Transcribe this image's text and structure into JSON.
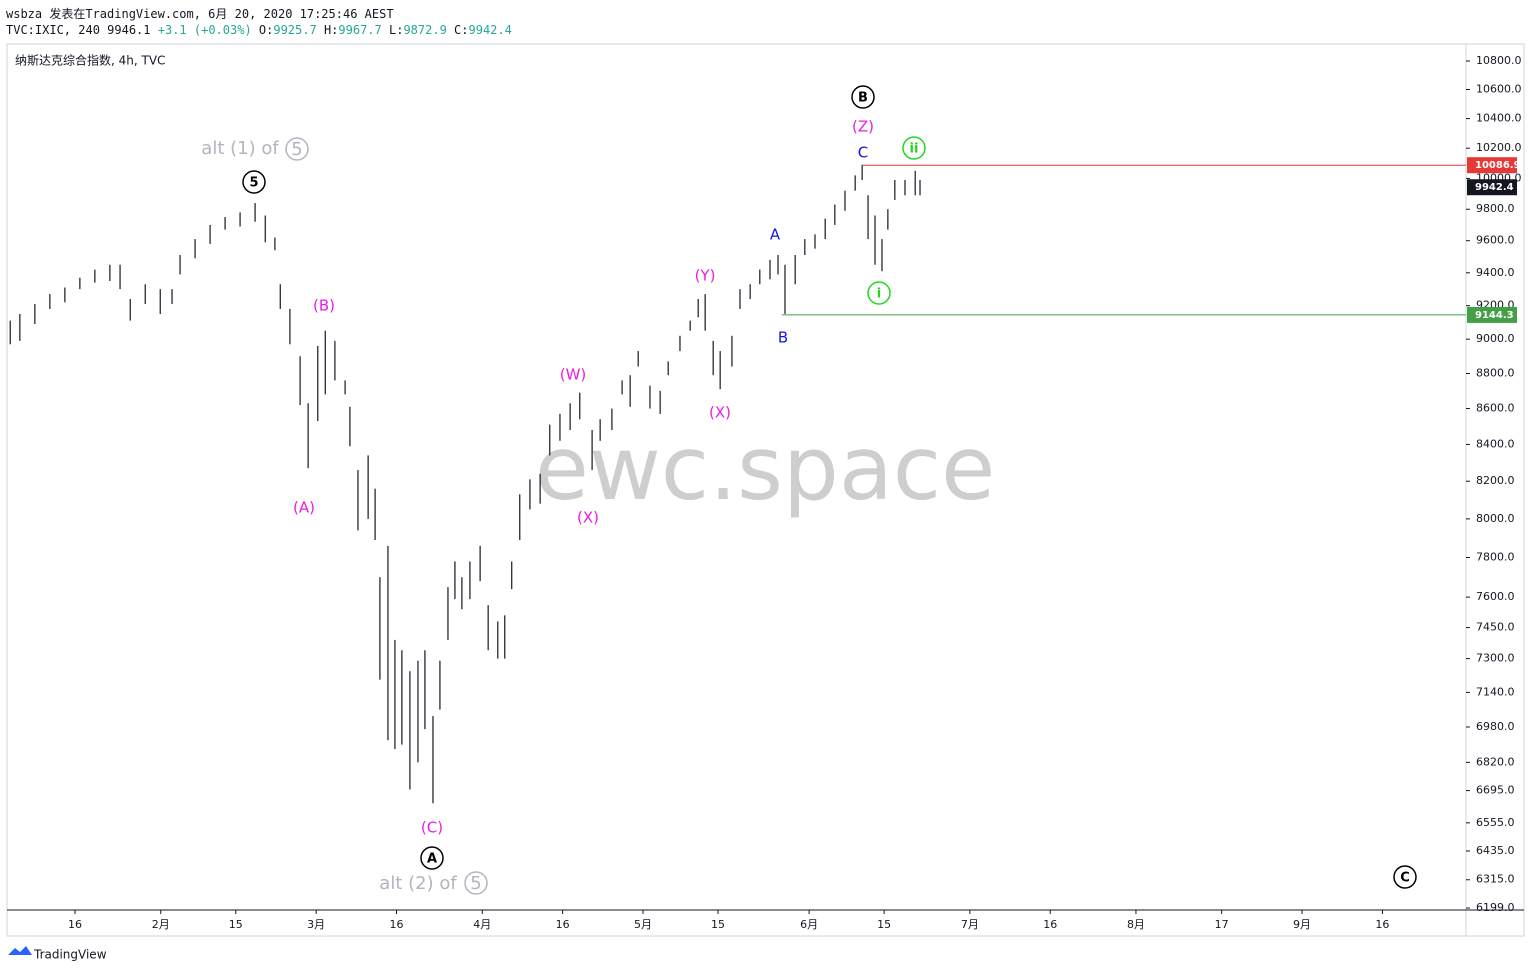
{
  "header": {
    "author_line": "wsbza 发表在TradingView.com, 6月 20, 2020 17:25:46 AEST",
    "symbol": "TVC:IXIC, 240",
    "last": 9946.1,
    "change": "+3.1 (+0.03%)",
    "ohlc_labels": [
      "O:",
      "H:",
      "L:",
      "C:"
    ],
    "ohlc_values": [
      9925.7,
      9967.7,
      9872.9,
      9942.4
    ]
  },
  "footer": {
    "brand": "TradingView"
  },
  "chart_data": {
    "type": "ohlc",
    "title": "纳斯达克综合指数, 4h, TVC",
    "watermark": "ewc.space",
    "color": "#131722",
    "log_scale": true,
    "x": [
      2.9,
      4.7,
      7.5,
      10.3,
      13.1,
      15.9,
      18.7,
      21.5,
      23.4,
      25.3,
      28.1,
      30.9,
      33.1,
      34.6,
      37.4,
      40.2,
      43.0,
      45.8,
      48.6,
      50.5,
      52.3,
      53.3,
      55.1,
      57.0,
      58.5,
      60.3,
      61.7,
      63.5,
      65.4,
      66.3,
      67.8,
      69.7,
      71.0,
      71.9,
      73.4,
      74.7,
      76.0,
      77.5,
      79.0,
      80.3,
      81.8,
      83.1,
      84.6,
      85.9,
      87.2,
      88.7,
      90.6,
      92.1,
      93.9,
      95.2,
      96.5,
      98.0,
      99.9,
      101.8,
      103.6,
      105.5,
      107.4,
      109.2,
      111.5,
      113.0,
      115.2,
      117.1,
      118.6,
      120.1,
      122.3,
      124.2,
      125.7,
      127.9,
      129.8,
      131.3,
      132.6,
      134.1,
      135.4,
      137.6,
      139.1,
      141.0,
      142.8,
      144.7,
      146.2,
      147.5,
      149.4,
      151.2,
      153.1,
      155.0,
      156.8,
      158.7,
      160.6,
      161.9,
      163.0,
      164.3,
      165.6,
      166.7,
      168.0,
      169.9,
      171.8,
      172.7
    ],
    "highs": [
      9110,
      9150,
      9210,
      9270,
      9310,
      9370,
      9420,
      9450,
      9450,
      9240,
      9330,
      9300,
      9300,
      9510,
      9610,
      9700,
      9750,
      9780,
      9840,
      9760,
      9620,
      9330,
      9180,
      8900,
      8630,
      8960,
      9050,
      8990,
      8760,
      8610,
      8260,
      8340,
      8160,
      7700,
      7860,
      7390,
      7340,
      7240,
      7290,
      7340,
      7030,
      7290,
      7650,
      7780,
      7700,
      7780,
      7860,
      7560,
      7480,
      7510,
      7780,
      8130,
      8210,
      8240,
      8510,
      8570,
      8630,
      8690,
      8480,
      8540,
      8600,
      8760,
      8790,
      8930,
      8730,
      8700,
      8870,
      9020,
      9110,
      9240,
      9270,
      8990,
      8930,
      9020,
      9300,
      9330,
      9420,
      9480,
      9510,
      9450,
      9510,
      9610,
      9640,
      9740,
      9830,
      9920,
      10020,
      10090,
      9890,
      9760,
      9610,
      9800,
      9990,
      9990,
      10050,
      9990
    ],
    "lows": [
      8970,
      8990,
      9090,
      9180,
      9220,
      9300,
      9340,
      9350,
      9300,
      9110,
      9210,
      9150,
      9210,
      9390,
      9490,
      9580,
      9670,
      9690,
      9720,
      9590,
      9540,
      9180,
      8970,
      8620,
      8270,
      8530,
      8680,
      8760,
      8680,
      8390,
      7940,
      8000,
      7890,
      7200,
      6920,
      6880,
      6900,
      6700,
      6820,
      6970,
      6640,
      7060,
      7390,
      7590,
      7540,
      7590,
      7680,
      7340,
      7300,
      7300,
      7640,
      7890,
      8050,
      8080,
      8340,
      8420,
      8480,
      8540,
      8260,
      8420,
      8480,
      8680,
      8610,
      8840,
      8600,
      8570,
      8790,
      8930,
      9050,
      9130,
      9050,
      8790,
      8710,
      8840,
      9180,
      9240,
      9330,
      9360,
      9390,
      9150,
      9330,
      9510,
      9550,
      9610,
      9700,
      9790,
      9920,
      9990,
      9610,
      9450,
      9410,
      9670,
      9860,
      9890,
      9890,
      9890
    ],
    "xlim": [
      2.3,
      274.6
    ],
    "xticks": [
      {
        "value": 15,
        "label": "16"
      },
      {
        "value": 31,
        "label": "2月"
      },
      {
        "value": 45,
        "label": "15"
      },
      {
        "value": 60,
        "label": "3月"
      },
      {
        "value": 75,
        "label": "16"
      },
      {
        "value": 91,
        "label": "4月"
      },
      {
        "value": 106,
        "label": "16"
      },
      {
        "value": 121,
        "label": "5月"
      },
      {
        "value": 135,
        "label": "15"
      },
      {
        "value": 152,
        "label": "6月"
      },
      {
        "value": 166,
        "label": "15"
      },
      {
        "value": 182,
        "label": "7月"
      },
      {
        "value": 197,
        "label": "16"
      },
      {
        "value": 213,
        "label": "8月"
      },
      {
        "value": 229,
        "label": "17"
      },
      {
        "value": 244,
        "label": "9月"
      },
      {
        "value": 259,
        "label": "16"
      }
    ],
    "ylim": [
      6191,
      10921
    ],
    "yticks": [
      {
        "value": 10800,
        "label": "10800.0"
      },
      {
        "value": 10600,
        "label": "10600.0"
      },
      {
        "value": 10400,
        "label": "10400.0"
      },
      {
        "value": 10200,
        "label": "10200.0"
      },
      {
        "value": 10000,
        "label": "10000.0"
      },
      {
        "value": 9800,
        "label": "9800.0"
      },
      {
        "value": 9600,
        "label": "9600.0"
      },
      {
        "value": 9400,
        "label": "9400.0"
      },
      {
        "value": 9200,
        "label": "9200.0"
      },
      {
        "value": 9000,
        "label": "9000.0"
      },
      {
        "value": 8800,
        "label": "8800.0"
      },
      {
        "value": 8600,
        "label": "8600.0"
      },
      {
        "value": 8400,
        "label": "8400.0"
      },
      {
        "value": 8200,
        "label": "8200.0"
      },
      {
        "value": 8000,
        "label": "8000.0"
      },
      {
        "value": 7800,
        "label": "7800.0"
      },
      {
        "value": 7600,
        "label": "7600.0"
      },
      {
        "value": 7450,
        "label": "7450.0"
      },
      {
        "value": 7300,
        "label": "7300.0"
      },
      {
        "value": 7140,
        "label": "7140.0"
      },
      {
        "value": 6980,
        "label": "6980.0"
      },
      {
        "value": 6820,
        "label": "6820.0"
      },
      {
        "value": 6695,
        "label": "6695.0"
      },
      {
        "value": 6555,
        "label": "6555.0"
      },
      {
        "value": 6435,
        "label": "6435.0"
      },
      {
        "value": 6315,
        "label": "6315.0"
      },
      {
        "value": 6199,
        "label": "6199.0"
      }
    ],
    "levels": [
      {
        "value": 10086.9,
        "x_start": 161.9,
        "color": "#e53935"
      },
      {
        "value": 9144.3,
        "x_start": 146.9,
        "color": "#43a047"
      }
    ],
    "last_price": {
      "value": 9942.4,
      "color": "#131722"
    },
    "annotations": [
      {
        "text": "alt (1) of",
        "color": "#b2b5be"
      },
      {
        "text": "5",
        "color": "#b2b5be",
        "circled": true
      },
      {
        "text": "5",
        "color": "#000000",
        "circled": true
      },
      {
        "text": "(B)",
        "color": "#e91ee0"
      },
      {
        "text": "(A)",
        "color": "#e91ee0"
      },
      {
        "text": "(C)",
        "color": "#e91ee0"
      },
      {
        "text": "A",
        "color": "#000000",
        "circled": true
      },
      {
        "text": "alt (2) of",
        "color": "#b2b5be"
      },
      {
        "text": "5",
        "color": "#b2b5be",
        "circled": true
      },
      {
        "text": "(W)",
        "color": "#e91ee0"
      },
      {
        "text": "(X)",
        "color": "#e91ee0"
      },
      {
        "text": "(Y)",
        "color": "#e91ee0"
      },
      {
        "text": "(X)",
        "color": "#e91ee0"
      },
      {
        "text": "A",
        "color": "#1515d8"
      },
      {
        "text": "B",
        "color": "#1515d8"
      },
      {
        "text": "B",
        "color": "#000000",
        "circled": true
      },
      {
        "text": "(Z)",
        "color": "#e91ee0"
      },
      {
        "text": "C",
        "color": "#1515d8"
      },
      {
        "text": "ii",
        "color": "#22d622",
        "circled": true
      },
      {
        "text": "i",
        "color": "#22d622",
        "circled": true
      },
      {
        "text": "C",
        "color": "#000000",
        "circled": true
      }
    ]
  }
}
